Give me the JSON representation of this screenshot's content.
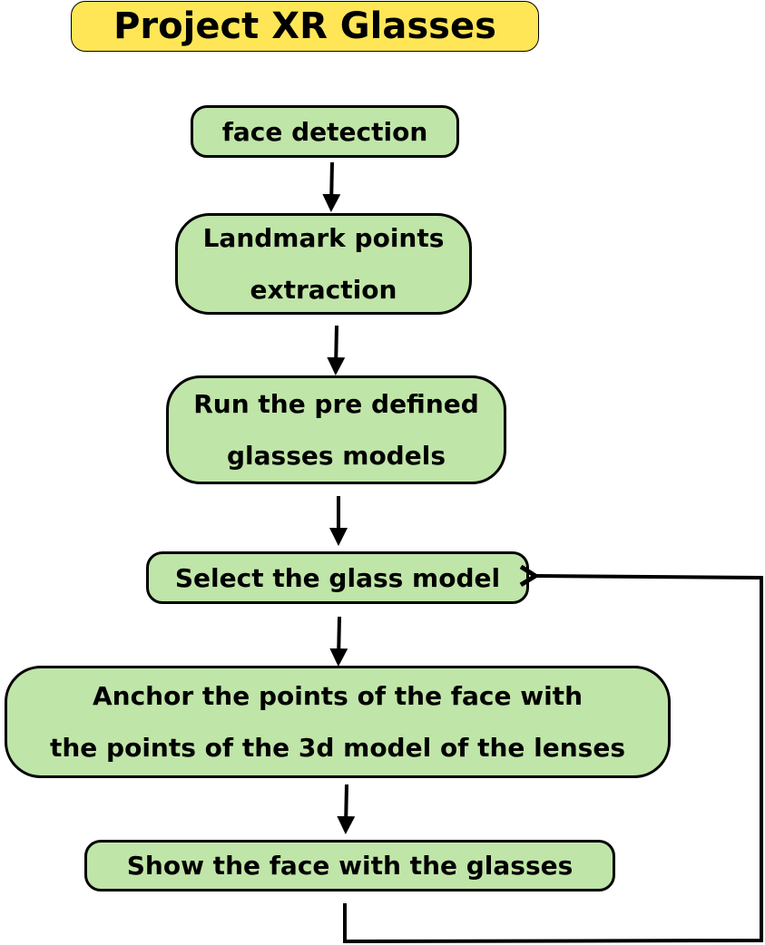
{
  "title": "Project XR Glasses",
  "colors": {
    "title_fill": "#ffe657",
    "step_fill": "#c0e5a8",
    "stroke": "#000000"
  },
  "steps": [
    {
      "lines": [
        "face detection"
      ]
    },
    {
      "lines": [
        "Landmark points",
        "extraction"
      ]
    },
    {
      "lines": [
        "Run the pre defined",
        "glasses models"
      ]
    },
    {
      "lines": [
        "Select the glass model"
      ]
    },
    {
      "lines": [
        "Anchor the points of the face with",
        "the points of the 3d model of the lenses"
      ]
    },
    {
      "lines": [
        "Show the face with the glasses"
      ]
    }
  ],
  "loop": {
    "from_step": 6,
    "to_step": 4
  }
}
